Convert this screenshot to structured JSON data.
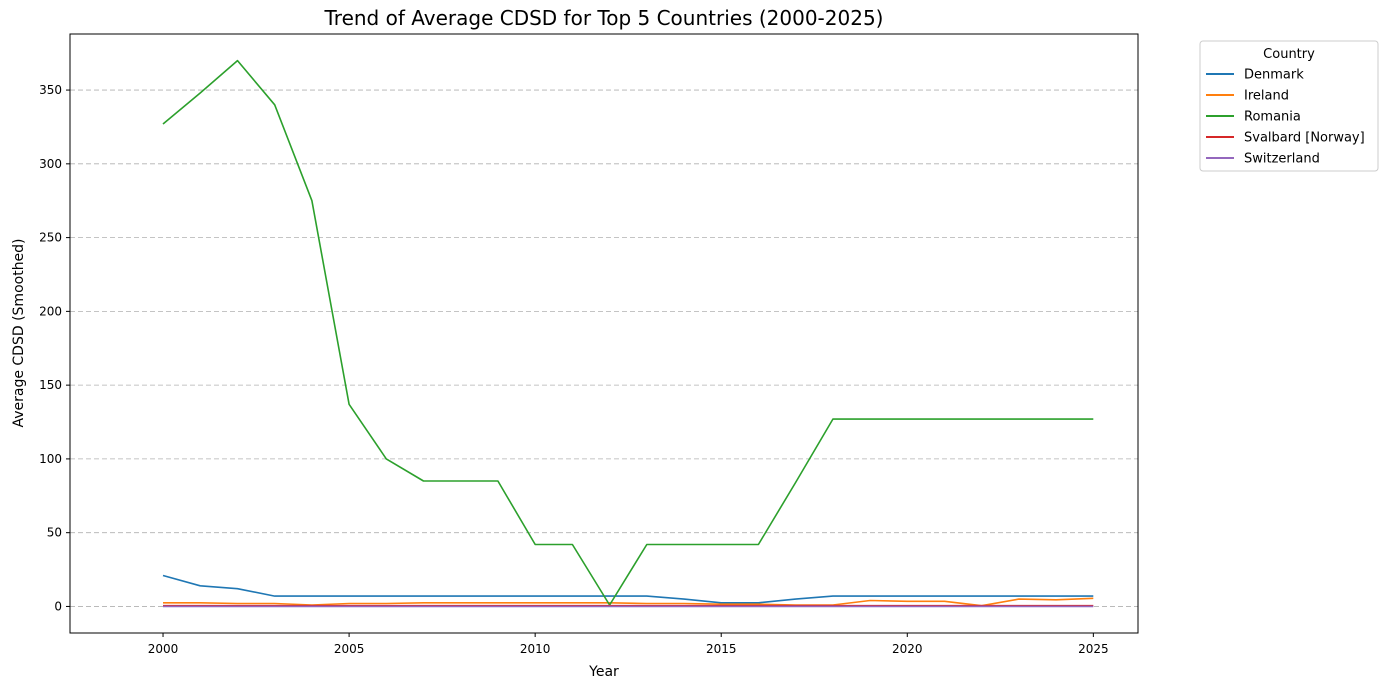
{
  "chart_data": {
    "type": "line",
    "title": "Trend of Average CDSD for Top 5 Countries (2000-2025)",
    "xlabel": "Year",
    "ylabel": "Average CDSD (Smoothed)",
    "xlim": [
      1997.5,
      2026.2
    ],
    "ylim": [
      -18,
      388
    ],
    "x_ticks": [
      2000,
      2005,
      2010,
      2015,
      2020,
      2025
    ],
    "y_ticks": [
      0,
      50,
      100,
      150,
      200,
      250,
      300,
      350
    ],
    "grid": "y-dashed",
    "legend": {
      "title": "Country",
      "placement": "outside-top-right"
    },
    "x": [
      2000,
      2001,
      2002,
      2003,
      2004,
      2005,
      2006,
      2007,
      2008,
      2009,
      2010,
      2011,
      2012,
      2013,
      2014,
      2015,
      2016,
      2017,
      2018,
      2019,
      2020,
      2021,
      2022,
      2023,
      2024,
      2025
    ],
    "series": [
      {
        "name": "Denmark",
        "color": "#1f77b4",
        "values": [
          21,
          14,
          12,
          7,
          7,
          7,
          7,
          7,
          7,
          7,
          7,
          7,
          7,
          7,
          5,
          2.5,
          2.5,
          5,
          7,
          7,
          7,
          7,
          7,
          7,
          7,
          7
        ]
      },
      {
        "name": "Ireland",
        "color": "#ff7f0e",
        "values": [
          2.5,
          2.5,
          2,
          2,
          1,
          2,
          2,
          2.5,
          2.5,
          2.5,
          2.5,
          2.5,
          2.5,
          2,
          2,
          1.5,
          1.5,
          1,
          1,
          4,
          3.5,
          3.5,
          0.5,
          5,
          4.5,
          5.5
        ]
      },
      {
        "name": "Romania",
        "color": "#2ca02c",
        "values": [
          327,
          348,
          370,
          340,
          275,
          137,
          100,
          85,
          85,
          85,
          42,
          42,
          1,
          42,
          42,
          42,
          42,
          84,
          127,
          127,
          127,
          127,
          127,
          127,
          127,
          127
        ]
      },
      {
        "name": "Svalbard [Norway]",
        "color": "#d62728",
        "values": [
          0.5,
          0.5,
          0.5,
          0.5,
          0.5,
          0.5,
          0.5,
          0.5,
          0.5,
          0.5,
          0.5,
          0.5,
          0.5,
          0.5,
          0.5,
          0.5,
          0.5,
          0.5,
          0.5,
          0.5,
          0.5,
          0.5,
          0.5,
          0.5,
          0.5,
          0.5
        ]
      },
      {
        "name": "Switzerland",
        "color": "#9467bd",
        "values": [
          0,
          0,
          0,
          0,
          0,
          0,
          0,
          0,
          0,
          0,
          0,
          0,
          0,
          0,
          0,
          0,
          0,
          0,
          0,
          0,
          0,
          0,
          0,
          0,
          0,
          0
        ]
      }
    ]
  }
}
